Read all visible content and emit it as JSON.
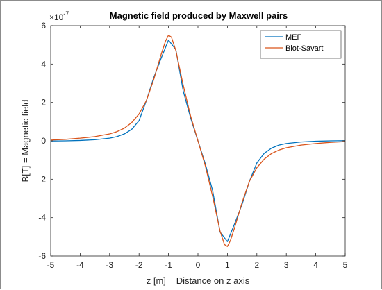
{
  "chart_data": {
    "type": "line",
    "title": "Magnetic field produced by Maxwell pairs",
    "xlabel": "z [m] = Distance on z axis",
    "ylabel": "B[T] = Magnetic field",
    "y_multiplier_base": "×10",
    "y_multiplier_exp": "-7",
    "xlim": [
      -5,
      5
    ],
    "ylim": [
      -6,
      6
    ],
    "x_ticks": [
      -5,
      -4,
      -3,
      -2,
      -1,
      0,
      1,
      2,
      3,
      4,
      5
    ],
    "y_ticks": [
      -6,
      -4,
      -2,
      0,
      2,
      4,
      6
    ],
    "grid": false,
    "legend_position": "top-right",
    "series": [
      {
        "name": "MEF",
        "color": "#0072BD",
        "x": [
          -5,
          -4.5,
          -4,
          -3.5,
          -3,
          -2.75,
          -2.5,
          -2.25,
          -2,
          -1.75,
          -1.5,
          -1.25,
          -1,
          -0.75,
          -0.5,
          -0.25,
          0,
          0.25,
          0.5,
          0.75,
          1,
          1.25,
          1.5,
          1.75,
          2,
          2.25,
          2.5,
          2.75,
          3,
          3.5,
          4,
          4.5,
          5
        ],
        "y": [
          -0.01,
          0,
          0.02,
          0.06,
          0.14,
          0.22,
          0.36,
          0.6,
          1.05,
          2.1,
          3.3,
          4.3,
          5.25,
          4.75,
          2.6,
          1.2,
          0,
          -1.2,
          -2.6,
          -4.75,
          -5.25,
          -4.3,
          -3.3,
          -2.1,
          -1.15,
          -0.65,
          -0.38,
          -0.22,
          -0.14,
          -0.06,
          -0.02,
          0,
          0.01
        ]
      },
      {
        "name": "Biot-Savart",
        "color": "#D95319",
        "x": [
          -5,
          -4.5,
          -4,
          -3.5,
          -3,
          -2.75,
          -2.5,
          -2.25,
          -2,
          -1.75,
          -1.5,
          -1.25,
          -1.1,
          -1,
          -0.9,
          -0.75,
          -0.5,
          -0.25,
          0,
          0.25,
          0.5,
          0.75,
          0.9,
          1,
          1.1,
          1.25,
          1.5,
          1.75,
          2,
          2.25,
          2.5,
          2.75,
          3,
          3.5,
          4,
          4.5,
          5
        ],
        "y": [
          0.04,
          0.08,
          0.14,
          0.22,
          0.36,
          0.48,
          0.66,
          0.95,
          1.4,
          2.1,
          3.2,
          4.5,
          5.2,
          5.5,
          5.4,
          4.7,
          2.9,
          1.3,
          0,
          -1.3,
          -2.9,
          -4.7,
          -5.4,
          -5.5,
          -5.2,
          -4.5,
          -3.2,
          -2.1,
          -1.4,
          -0.95,
          -0.66,
          -0.48,
          -0.36,
          -0.22,
          -0.14,
          -0.08,
          -0.04
        ]
      }
    ]
  }
}
